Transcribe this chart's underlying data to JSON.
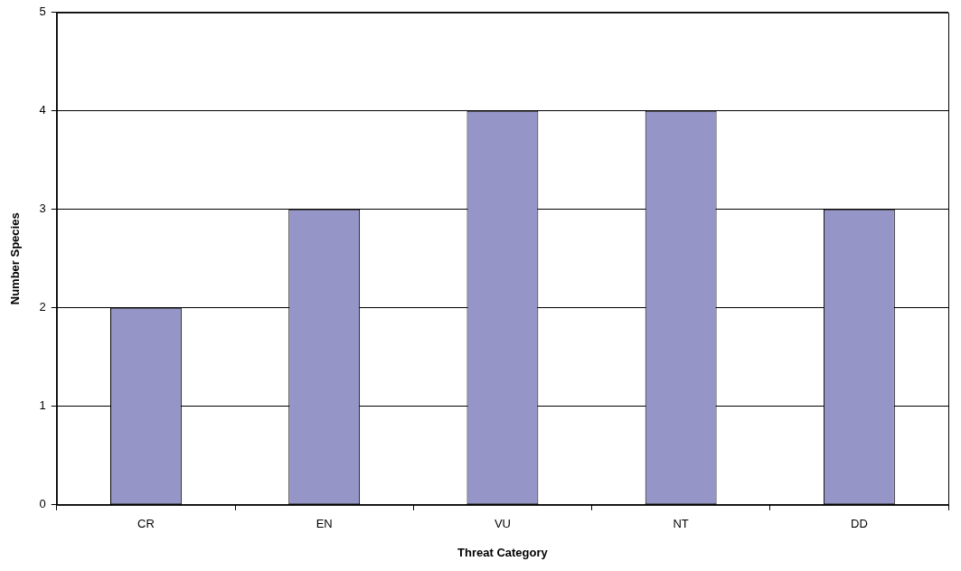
{
  "chart_data": {
    "type": "bar",
    "xlabel": "Threat Category",
    "ylabel": "Number Species",
    "categories": [
      "CR",
      "EN",
      "VU",
      "NT",
      "DD"
    ],
    "values": [
      2,
      3,
      4,
      4,
      3
    ],
    "color": "#9595c8",
    "ylim": [
      0,
      5
    ],
    "yticks": [
      0,
      1,
      2,
      3,
      4,
      5
    ],
    "grid": "y"
  }
}
